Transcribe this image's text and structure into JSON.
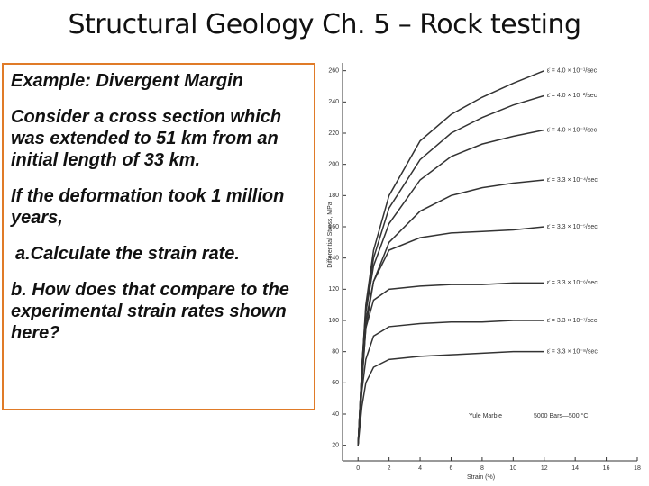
{
  "title": "Structural Geology Ch. 5 – Rock testing",
  "textbox": {
    "paragraphs": [
      "Example: Divergent Margin",
      "Consider a cross section which was extended to 51 km from an initial length of 33 km.",
      "If the deformation took 1 million years,",
      "a.Calculate the strain rate.",
      "b. How does that compare to the experimental strain rates shown here?"
    ]
  },
  "chart_data": {
    "type": "line",
    "x_label": "Strain (%)",
    "y_label": "Differential Stress, MPa",
    "x": [
      0,
      0.25,
      0.5,
      1,
      2,
      4,
      6,
      8,
      10,
      12
    ],
    "series": [
      {
        "name": "ε̇ = 4.0 × 10⁻¹/sec",
        "color": "#333333",
        "values": [
          20,
          70,
          110,
          145,
          180,
          215,
          232,
          243,
          252,
          260
        ]
      },
      {
        "name": "ε̇ = 4.0 × 10⁻²/sec",
        "color": "#333333",
        "values": [
          20,
          70,
          108,
          140,
          172,
          203,
          220,
          230,
          238,
          244
        ]
      },
      {
        "name": "ε̇ = 4.0 × 10⁻³/sec",
        "color": "#333333",
        "values": [
          20,
          70,
          105,
          135,
          162,
          190,
          205,
          213,
          218,
          222
        ]
      },
      {
        "name": "ε̇ = 3.3 × 10⁻⁴/sec",
        "color": "#333333",
        "values": [
          20,
          65,
          100,
          125,
          150,
          170,
          180,
          185,
          188,
          190
        ]
      },
      {
        "name": "ε̇ = 3.3 × 10⁻⁵/sec",
        "color": "#333333",
        "values": [
          20,
          62,
          95,
          125,
          145,
          153,
          156,
          157,
          158,
          160
        ]
      },
      {
        "name": "ε̇ = 3.3 × 10⁻⁶/sec",
        "color": "#333333",
        "values": [
          20,
          60,
          95,
          113,
          120,
          122,
          123,
          123,
          124,
          124
        ]
      },
      {
        "name": "ε̇ = 3.3 × 10⁻⁷/sec",
        "color": "#333333",
        "values": [
          20,
          55,
          75,
          90,
          96,
          98,
          99,
          99,
          100,
          100
        ]
      },
      {
        "name": "ε̇ = 3.3 × 10⁻⁸/sec",
        "color": "#333333",
        "values": [
          20,
          45,
          60,
          70,
          75,
          77,
          78,
          79,
          80,
          80
        ]
      }
    ],
    "annotations": [
      "Yule Marble",
      "5000 Bars—500 °C"
    ],
    "xlim": [
      -1,
      18
    ],
    "xticks": [
      0,
      2,
      4,
      6,
      8,
      10,
      12,
      14,
      16,
      18
    ],
    "ylim": [
      10,
      265
    ],
    "yticks": [
      20,
      40,
      60,
      80,
      100,
      120,
      140,
      160,
      180,
      200,
      220,
      240,
      260
    ]
  }
}
